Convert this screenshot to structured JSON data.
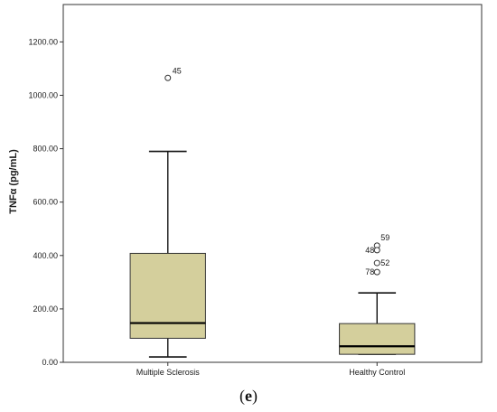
{
  "chart_data": {
    "type": "boxplot",
    "ylabel": "TNFα (pg/mL)",
    "xlabel": "",
    "ylim": [
      0,
      1340
    ],
    "yticks": [
      0,
      200,
      400,
      600,
      800,
      1000,
      1200
    ],
    "ytick_labels": [
      "0.00",
      "200.00",
      "400.00",
      "600.00",
      "800.00",
      "1000.00",
      "1200.00"
    ],
    "grid": false,
    "box_color": "#d4cf9c",
    "categories": [
      "Multiple Sclerosis",
      "Healthy Control"
    ],
    "boxes": [
      {
        "category": "Multiple Sclerosis",
        "whisker_low": 20,
        "q1": 90,
        "median": 147,
        "q3": 408,
        "whisker_high": 790,
        "outliers": [
          {
            "label": "45",
            "value": 1065
          }
        ]
      },
      {
        "category": "Healthy Control",
        "whisker_low": 30,
        "q1": 30,
        "median": 60,
        "q3": 145,
        "whisker_high": 260,
        "outliers": [
          {
            "label": "59",
            "value": 437
          },
          {
            "label": "48",
            "value": 420
          },
          {
            "label": "52",
            "value": 372
          },
          {
            "label": "78",
            "value": 338
          }
        ]
      }
    ]
  },
  "caption": {
    "open": "(",
    "letter": "e",
    "close": ")"
  }
}
